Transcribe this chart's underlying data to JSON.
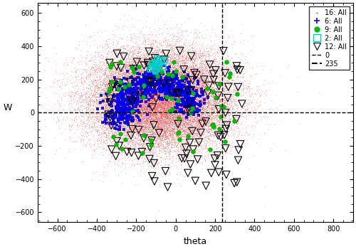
{
  "title": "",
  "xlabel": "theta",
  "ylabel": "W",
  "xlim": [
    -700,
    900
  ],
  "ylim": [
    -660,
    660
  ],
  "xticks": [
    -600,
    -400,
    -200,
    0,
    200,
    400,
    600,
    800
  ],
  "yticks": [
    -600,
    -400,
    -200,
    0,
    200,
    400,
    600
  ],
  "dashed_x": 235,
  "dashed_y": 0,
  "legend_labels": [
    "16: All",
    "6: All",
    "9: All",
    "2: All",
    "12: All",
    "0",
    "235"
  ],
  "stream16_color": "#ff4444",
  "stream6_color": "#0000ee",
  "stream9_color": "#00bb00",
  "stream2_color": "#00cccc",
  "stream12_color": "#000000",
  "n_stream16": 25000,
  "n_stream6": 800,
  "n_stream9": 65,
  "n_stream2": 18,
  "n_stream12": 130,
  "seed": 42
}
